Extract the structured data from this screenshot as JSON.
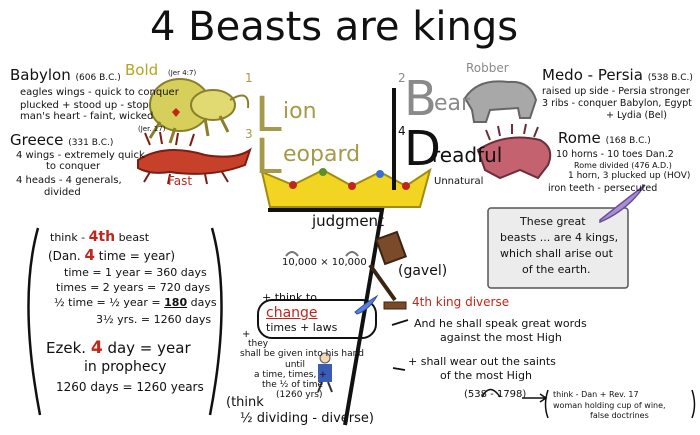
{
  "title": "4 Beasts are kings",
  "babylon": {
    "name": "Babylon",
    "date": "(606 B.C.)",
    "bold_label": "Bold",
    "ref1": "(Jer 4:7)",
    "desc1": "eagles wings - quick to conquer",
    "desc2": "plucked + stood up - stop",
    "desc3": "man's heart - faint, wicked",
    "ref2": "(Jer. 17)"
  },
  "greece": {
    "name": "Greece",
    "date": "(331 B.C.)",
    "desc1": "4 wings - extremely quick",
    "desc2": "to conquer",
    "desc3": "4 heads - 4 generals,",
    "desc4": "divided",
    "fast_label": "Fast"
  },
  "beasts": {
    "num1": "1",
    "lion_rest": "ion",
    "num3": "3",
    "leopard_rest": "eopard",
    "num2": "2",
    "bear_rest": "ear",
    "num4": "4",
    "dreadful_rest": "readful",
    "L": "L",
    "B": "B",
    "D": "D"
  },
  "medo_persia": {
    "robber_label": "Robber",
    "name": "Medo - Persia",
    "date": "(538 B.C.)",
    "desc1": "raised up side - Persia stronger",
    "desc2": "3 ribs - conquer Babylon, Egypt",
    "desc3": "+ Lydia (Bel)"
  },
  "rome": {
    "name": "Rome",
    "date": "(168 B.C.)",
    "desc1": "10 horns - 10 toes Dan.2",
    "desc2": "Rome divided (476 A.D.)",
    "desc3": "1 horn, 3 plucked up (HOV)",
    "desc4": "iron teeth - persecuted",
    "unnatural_label": "Unnatural"
  },
  "judgment": {
    "label": "judgment",
    "count_a": "10,000",
    "times": "×",
    "count_b": "10,000",
    "gavel": "(gavel)"
  },
  "scroll": {
    "line1": "These great",
    "line2": "beasts ... are 4 kings,",
    "line3": "which shall arise out",
    "line4": "of the earth."
  },
  "left_box": {
    "think": "think -",
    "fourth": "4th",
    "beast": "beast",
    "dan_open": "(Dan.",
    "dan_num": "4",
    "dan_rest": "time = year)",
    "l1": "time = 1 year = 360 days",
    "l2": "times = 2 years = 720 days",
    "l3a": "½ time = ½ year =",
    "l3b": "180",
    "l3c": "days",
    "l4": "3½ yrs. = 1260 days",
    "ezek": "Ezek.",
    "ezek_num": "4",
    "ezek_rest": "day = year",
    "prophecy": "in prophecy",
    "last": "1260 days = 1260 years"
  },
  "center_bottom": {
    "think_to": "+ think to",
    "change": "change",
    "times_laws": "times + laws",
    "plus": "+",
    "they": "they",
    "given1": "shall be given into his hand",
    "until": "until",
    "given2": "a time, times, +",
    "given3": "the ½ of time",
    "given4": "(1260 yrs)",
    "think2": "(think",
    "dividing": "½ dividing - diverse)"
  },
  "diverse": {
    "label": "4th king diverse",
    "speak1": "And he shall speak great words",
    "speak2": "against the most High",
    "wear1": "+ shall wear out the saints",
    "wear2": "of the most High"
  },
  "bottom_right": {
    "range": "(538 - 1798)",
    "think": "think - Dan",
    "rev": "+ Rev.",
    "rev_num": "17",
    "line2": "woman holding cup of wine,",
    "line3": "false doctrines"
  }
}
